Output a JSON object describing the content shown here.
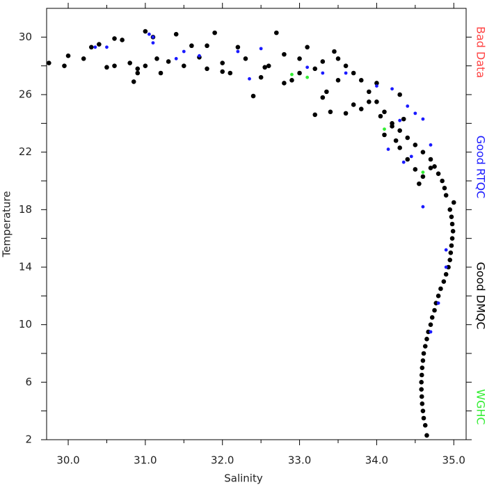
{
  "chart_data": {
    "type": "scatter",
    "x_label": "Salinity",
    "y_label": "Temperature",
    "xlim": [
      29.72,
      35.16
    ],
    "ylim": [
      2,
      32
    ],
    "xticks": [
      {
        "value": 30,
        "label": "30.0"
      },
      {
        "value": 31,
        "label": "31.0"
      },
      {
        "value": 32,
        "label": "32.0"
      },
      {
        "value": 33,
        "label": "33.0"
      },
      {
        "value": 34,
        "label": "34.0"
      },
      {
        "value": 35,
        "label": "35.0"
      }
    ],
    "yticks": [
      2,
      6,
      10,
      14,
      18,
      22,
      26,
      30
    ],
    "series": [
      {
        "name": "Bad Data",
        "color": "#ff4444",
        "x": [],
        "y": []
      },
      {
        "name": "Good RTQC",
        "color": "#1a1aff",
        "x": [
          31.05,
          31.1,
          31.1,
          30.35,
          30.5,
          31.4,
          31.5,
          31.7,
          32.2,
          32.35,
          32.5,
          33.1,
          33.3,
          33.6,
          34.0,
          34.2,
          34.4,
          34.5,
          34.6,
          34.3,
          34.15,
          34.35,
          34.45,
          34.7,
          34.6,
          34.9,
          34.9,
          34.8,
          34.7
        ],
        "y": [
          30.2,
          29.6,
          30,
          29.3,
          29.3,
          28.5,
          29,
          28.7,
          29,
          27.1,
          29.2,
          27.9,
          27.5,
          27.5,
          26.6,
          26.4,
          25.2,
          24.7,
          24.3,
          24.2,
          22.2,
          21.3,
          21.7,
          22.5,
          18.2,
          15.2,
          14,
          11.5,
          9.5
        ]
      },
      {
        "name": "Good DMQC",
        "color": "#000000",
        "x": [
          34.65,
          34.63,
          34.61,
          34.6,
          34.59,
          34.585,
          34.58,
          34.58,
          34.585,
          34.59,
          34.6,
          34.61,
          34.63,
          34.65,
          34.67,
          34.7,
          34.72,
          34.75,
          34.77,
          34.8,
          34.83,
          34.87,
          34.9,
          34.93,
          34.95,
          34.96,
          34.97,
          34.98,
          34.99,
          34.98,
          34.97,
          34.95,
          35.0,
          34.9,
          34.88,
          34.85,
          34.8,
          34.75,
          34.7,
          34.6,
          34.5,
          34.4,
          34.3,
          34.2,
          34.35,
          34.1,
          34.0,
          33.9,
          34.0,
          33.8,
          33.7,
          33.6,
          33.5,
          33.45,
          33.3,
          33.2,
          33.1,
          33.0,
          33.0,
          32.9,
          32.8,
          32.7,
          32.6,
          32.5,
          32.4,
          32.3,
          32.2,
          32.1,
          32.0,
          31.9,
          31.8,
          31.7,
          31.6,
          31.5,
          31.4,
          31.3,
          31.2,
          31.1,
          31.0,
          31.0,
          30.9,
          30.85,
          30.8,
          30.7,
          30.6,
          30.5,
          30.4,
          30.3,
          30.2,
          30.0,
          29.95,
          29.75,
          30.6,
          30.9,
          31.15,
          31.8,
          32.55,
          33.2,
          33.3,
          33.4,
          33.6,
          33.7,
          33.8,
          33.9,
          34.05,
          34.1,
          34.2,
          34.25,
          34.3,
          34.4,
          34.5,
          34.6,
          34.7,
          34.3,
          33.5,
          32.8,
          32.0,
          33.35,
          34.55
        ],
        "y": [
          2.3,
          3,
          3.5,
          4,
          4.5,
          5,
          5.5,
          6,
          6.5,
          7,
          7.5,
          8,
          8.5,
          9,
          9.5,
          10,
          10.5,
          11,
          11.5,
          12,
          12.5,
          13,
          13.5,
          14,
          14.5,
          15,
          15.5,
          16,
          16.5,
          17,
          17.5,
          18,
          18.5,
          19,
          19.5,
          20,
          20.5,
          21,
          21.5,
          22,
          22.5,
          23,
          23.5,
          24,
          24.3,
          24.8,
          25.5,
          26.2,
          26.8,
          27,
          27.5,
          28,
          28.5,
          29,
          28.3,
          27.8,
          29.3,
          28.5,
          27.5,
          27,
          28.8,
          30.3,
          28,
          27.2,
          25.9,
          28.5,
          29.3,
          27.5,
          28.2,
          30.3,
          27.8,
          28.6,
          29.4,
          28,
          30.2,
          28.3,
          27.5,
          30,
          30.4,
          28,
          27.5,
          26.9,
          28.2,
          29.8,
          28,
          27.9,
          29.5,
          29.3,
          28.5,
          28.7,
          28,
          28.2,
          29.9,
          27.8,
          28.5,
          29.4,
          27.9,
          24.6,
          25.8,
          24.8,
          24.7,
          25.3,
          25,
          25.5,
          24.5,
          23.2,
          23.8,
          22.8,
          22.3,
          21.5,
          20.8,
          20.3,
          20.9,
          26,
          27,
          26.8,
          27.6,
          26.2,
          19.8
        ]
      },
      {
        "name": "WGHC",
        "color": "#33ee33",
        "x": [
          32.9,
          33.1,
          34.1,
          34.6
        ],
        "y": [
          27.4,
          27.2,
          23.6,
          20.6
        ]
      }
    ]
  }
}
